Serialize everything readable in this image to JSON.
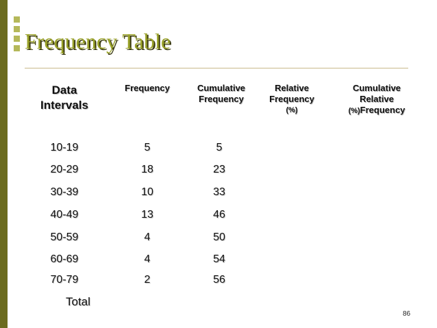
{
  "title": "Frequency Table",
  "headers": {
    "data_intervals": [
      "Data",
      "Intervals"
    ],
    "frequency": [
      "Frequency"
    ],
    "cumulative_frequency": [
      "Cumulative",
      "Frequency"
    ],
    "relative_frequency": [
      "Relative",
      "Frequency",
      "(%)"
    ],
    "cumulative_relative_frequency": [
      "Cumulative",
      "Relative",
      "(%)",
      "Frequency"
    ]
  },
  "rows": [
    {
      "interval": "10-19",
      "frequency": "5",
      "cumulative": "5"
    },
    {
      "interval": "20-29",
      "frequency": "18",
      "cumulative": "23"
    },
    {
      "interval": "30-39",
      "frequency": "10",
      "cumulative": "33"
    },
    {
      "interval": "40-49",
      "frequency": "13",
      "cumulative": "46"
    },
    {
      "interval": "50-59",
      "frequency": "4",
      "cumulative": "50"
    },
    {
      "interval": "60-69",
      "frequency": "4",
      "cumulative": "54"
    },
    {
      "interval": "70-79",
      "frequency": "2",
      "cumulative": "56"
    }
  ],
  "total_label": "Total",
  "page_number": "86",
  "colors": {
    "sidebar": "#6b6b1f",
    "title": "#9aa22a",
    "accent_square": "#b5b85a"
  }
}
